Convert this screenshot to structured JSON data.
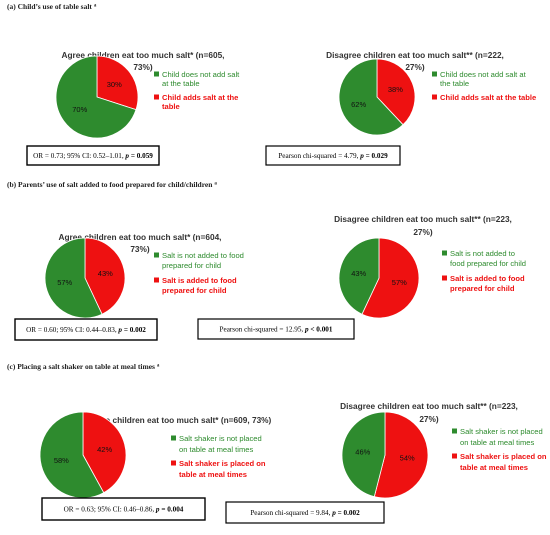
{
  "colors": {
    "green": "#2E8B2E",
    "red": "#EE1111",
    "green_text": "#2E8B2E",
    "red_text": "#EE1111"
  },
  "sections": [
    {
      "title": "(a) Child’s use of table salt",
      "marker": "a",
      "stats": [
        {
          "plain": "OR = 0.73; 95% CI: 0.52–1.01, ",
          "p_label": "p",
          "p_value": " = 0.059"
        },
        {
          "plain": "Pearson chi-squared = 4.79, ",
          "p_label": "p",
          "p_value": " = 0.029"
        }
      ]
    },
    {
      "title": "(b) Parents’ use of salt added to food prepared for child/children",
      "marker": "a",
      "stats": [
        {
          "plain": "OR = 0.60; 95% CI: 0.44–0.83, ",
          "p_label": "p",
          "p_value": " = 0.002"
        },
        {
          "plain": "Pearson chi-squared = 12.95, ",
          "p_label": "p",
          "p_value": " < 0.001"
        }
      ]
    },
    {
      "title": "(c) Placing a salt shaker on table at meal times",
      "marker": "a",
      "stats": [
        {
          "plain": "OR = 0.63; 95% CI: 0.46–0.86, ",
          "p_label": "p",
          "p_value": " = 0.004"
        },
        {
          "plain": "Pearson chi-squared = 9.84, ",
          "p_label": "p",
          "p_value": " = 0.002"
        }
      ]
    }
  ],
  "chart_data": [
    {
      "type": "pie",
      "title_lines": [
        "Agree children eat too much salt* (n=605,",
        "73%)"
      ],
      "slices": [
        {
          "label_lines": [
            "Child does not add salt",
            "at the table"
          ],
          "value": 70,
          "text": "70%",
          "color": "#2E8B2E"
        },
        {
          "label_lines": [
            "Child adds salt at the",
            "table"
          ],
          "value": 30,
          "text": "30%",
          "color": "#EE1111"
        }
      ],
      "legend": "right"
    },
    {
      "type": "pie",
      "title_lines": [
        "Disagree children eat too much salt** (n=222,",
        "27%)"
      ],
      "slices": [
        {
          "label_lines": [
            "Child does not add salt at",
            "the table"
          ],
          "value": 62,
          "text": "62%",
          "color": "#2E8B2E"
        },
        {
          "label_lines": [
            "Child adds salt at the table"
          ],
          "value": 38,
          "text": "38%",
          "color": "#EE1111"
        }
      ],
      "legend": "right"
    },
    {
      "type": "pie",
      "title_lines": [
        "Agree children eat too much salt* (n=604,",
        "73%)"
      ],
      "slices": [
        {
          "label_lines": [
            "Salt is not added to food",
            "prepared for child"
          ],
          "value": 57,
          "text": "57%",
          "color": "#2E8B2E"
        },
        {
          "label_lines": [
            "Salt is added to food",
            "prepared for child"
          ],
          "value": 43,
          "text": "43%",
          "color": "#EE1111"
        }
      ],
      "legend": "right"
    },
    {
      "type": "pie",
      "title_lines": [
        "Disagree children eat too much salt** (n=223,",
        "27%)"
      ],
      "slices": [
        {
          "label_lines": [
            "Salt is not added to",
            "food prepared for child"
          ],
          "value": 43,
          "text": "43%",
          "color": "#2E8B2E"
        },
        {
          "label_lines": [
            "Salt is added to food",
            "prepared for child"
          ],
          "value": 57,
          "text": "57%",
          "color": "#EE1111"
        }
      ],
      "legend": "right"
    },
    {
      "type": "pie",
      "title_lines": [
        "Agree children eat too much salt* (n=609, 73%)"
      ],
      "slices": [
        {
          "label_lines": [
            "Salt shaker is not placed",
            "on table at meal times"
          ],
          "value": 58,
          "text": "58%",
          "color": "#2E8B2E"
        },
        {
          "label_lines": [
            "Salt shaker is placed on",
            "table at meal times"
          ],
          "value": 42,
          "text": "42%",
          "color": "#EE1111"
        }
      ],
      "legend": "right"
    },
    {
      "type": "pie",
      "title_lines": [
        "Disagree children eat too much salt** (n=223,",
        "27%)"
      ],
      "slices": [
        {
          "label_lines": [
            "Salt shaker is not placed",
            "on table at meal times"
          ],
          "value": 46,
          "text": "46%",
          "color": "#2E8B2E"
        },
        {
          "label_lines": [
            "Salt shaker is placed on",
            "table at meal times"
          ],
          "value": 54,
          "text": "54%",
          "color": "#EE1111"
        }
      ],
      "legend": "right"
    }
  ]
}
